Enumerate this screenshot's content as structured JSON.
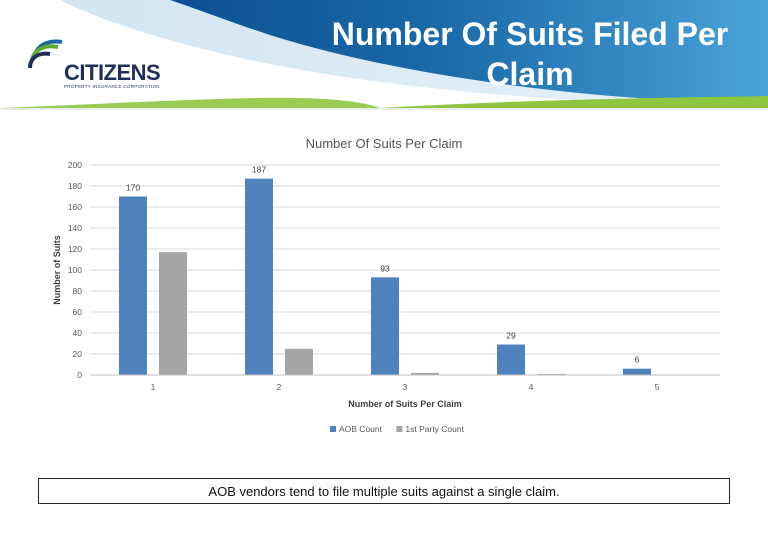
{
  "header": {
    "title": "Number Of Suits Filed Per Claim",
    "logo_name": "CITIZENS",
    "logo_tagline": "PROPERTY INSURANCE CORPORATION"
  },
  "chart_data": {
    "type": "bar",
    "title": "Number Of Suits Per Claim",
    "xlabel": "Number of Suits Per Claim",
    "ylabel": "Number of Suits",
    "categories": [
      "1",
      "2",
      "3",
      "4",
      "5"
    ],
    "series": [
      {
        "name": "AOB Count",
        "values": [
          170,
          187,
          93,
          29,
          6
        ],
        "color": "#4f81bd",
        "data_labels": [
          "170",
          "187",
          "93",
          "29",
          "6"
        ]
      },
      {
        "name": "1st Party Count",
        "values": [
          117,
          25,
          2,
          1,
          0
        ],
        "color": "#a5a5a5"
      }
    ],
    "ylim": [
      0,
      200
    ],
    "yticks": [
      0,
      20,
      40,
      60,
      80,
      100,
      120,
      140,
      160,
      180,
      200
    ],
    "grid": true,
    "legend": "bottom"
  },
  "caption": "AOB vendors tend to file multiple suits against a single claim.",
  "colors": {
    "accent_blue": "#1a6aa8",
    "accent_green": "#8dc63f",
    "logo_navy": "#1f2f5a"
  }
}
